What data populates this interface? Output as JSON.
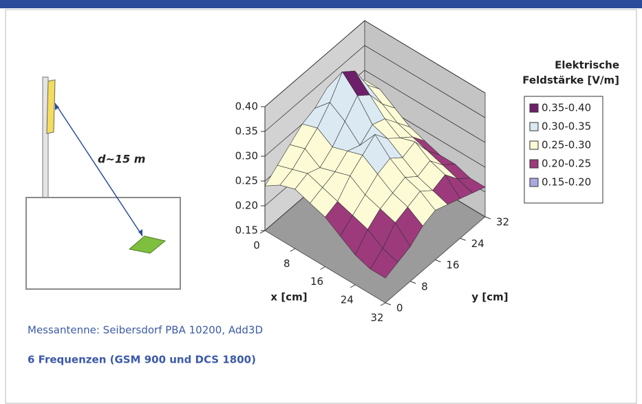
{
  "diagram": {
    "distance_label": "d~15 m"
  },
  "chart_data": {
    "type": "surface",
    "x": [
      0,
      4,
      8,
      12,
      16,
      20,
      24,
      28,
      32
    ],
    "y": [
      0,
      4,
      8,
      12,
      16,
      20,
      24,
      28,
      32
    ],
    "z": [
      [
        0.24,
        0.26,
        0.28,
        0.3,
        0.31,
        0.33,
        0.32,
        0.3,
        0.28
      ],
      [
        0.26,
        0.27,
        0.29,
        0.31,
        0.34,
        0.38,
        0.36,
        0.31,
        0.28
      ],
      [
        0.27,
        0.28,
        0.27,
        0.29,
        0.32,
        0.35,
        0.33,
        0.29,
        0.26
      ],
      [
        0.26,
        0.27,
        0.28,
        0.3,
        0.29,
        0.31,
        0.3,
        0.27,
        0.24
      ],
      [
        0.25,
        0.26,
        0.29,
        0.31,
        0.33,
        0.3,
        0.28,
        0.26,
        0.23
      ],
      [
        0.23,
        0.25,
        0.27,
        0.29,
        0.3,
        0.28,
        0.29,
        0.25,
        0.22
      ],
      [
        0.21,
        0.24,
        0.26,
        0.27,
        0.28,
        0.26,
        0.27,
        0.24,
        0.22
      ],
      [
        0.2,
        0.22,
        0.25,
        0.26,
        0.27,
        0.25,
        0.26,
        0.23,
        0.21
      ],
      [
        0.2,
        0.21,
        0.22,
        0.24,
        0.25,
        0.24,
        0.23,
        0.22,
        0.21
      ]
    ],
    "xlim": [
      0,
      32
    ],
    "ylim": [
      0,
      32
    ],
    "zlim": [
      0.15,
      {
        "value": 0.4,
        "label": "0.40"
      }
    ],
    "xticks": [
      0,
      8,
      16,
      24,
      32
    ],
    "yticks": [
      0,
      8,
      16,
      24,
      32
    ],
    "zticks": [
      0.15,
      {
        "value": 0.2,
        "label": "0.20"
      },
      0.25,
      {
        "value": 0.3,
        "label": "0.30"
      },
      0.35,
      {
        "value": 0.4,
        "label": "0.40"
      }
    ],
    "xlabel": "x [cm]",
    "ylabel": "y [cm]",
    "legend_title": [
      "Elektrische",
      "Feldstärke [V/m]"
    ],
    "bands": [
      {
        "name": "0.35-0.40",
        "range": [
          0.35,
          0.4
        ],
        "color": "#6e1f6a"
      },
      {
        "name": "0.30-0.35",
        "range": [
          0.3,
          0.35
        ],
        "color": "#dbe9f2"
      },
      {
        "name": "0.25-0.30",
        "range": [
          0.25,
          0.3
        ],
        "color": "#fdfbd6"
      },
      {
        "name": "0.20-0.25",
        "range": [
          0.2,
          0.25
        ],
        "color": "#9c3a7c"
      },
      {
        "name": "0.15-0.20",
        "range": [
          0.15,
          0.2
        ],
        "color": "#a9a9e0"
      }
    ]
  },
  "caption": "Messantenne: Seibersdorf PBA 10200, Add3D",
  "footer": "6 Frequenzen (GSM 900 und DCS 1800)"
}
